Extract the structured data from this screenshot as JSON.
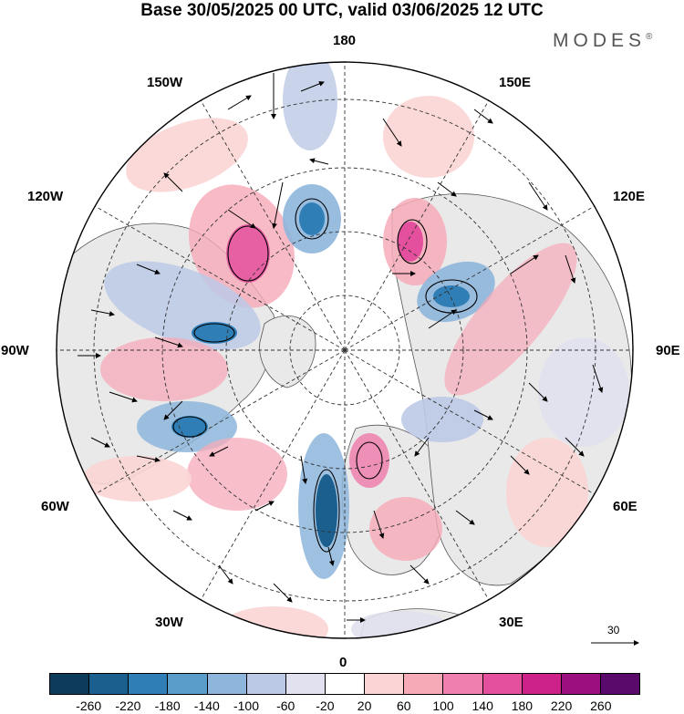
{
  "title": "Base 30/05/2025 00 UTC, valid 03/06/2025 12 UTC",
  "brand": "MODES",
  "brand_mark": "®",
  "longitude_labels": {
    "lon_180": "180",
    "lon_150w": "150W",
    "lon_150e": "150E",
    "lon_120w": "120W",
    "lon_120e": "120E",
    "lon_90w": "90W",
    "lon_90e": "90E",
    "lon_60w": "60W",
    "lon_60e": "60E",
    "lon_30w": "30W",
    "lon_30e": "30E",
    "lon_0": "0"
  },
  "vector_scale": {
    "label": "30"
  },
  "colorbar": {
    "colors": [
      "#0d3b5c",
      "#1a5f8e",
      "#2f7fb6",
      "#5a9dcb",
      "#8eb6dc",
      "#bcc9e6",
      "#e1e1f0",
      "#ffffff",
      "#fbd5d5",
      "#f6aab8",
      "#ef7fae",
      "#e5509e",
      "#cc2189",
      "#9c0f7e",
      "#5a0a6b"
    ],
    "ticks": [
      "-260",
      "-220",
      "-180",
      "-140",
      "-100",
      "-60",
      "-20",
      "20",
      "60",
      "100",
      "140",
      "180",
      "220",
      "260"
    ]
  },
  "map_colors": {
    "land": "#e9e9e9",
    "ocean": "#ffffff",
    "graticule": "#333333",
    "coast": "#555555"
  }
}
